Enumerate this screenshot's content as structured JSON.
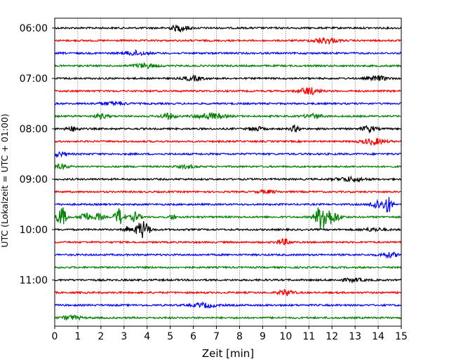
{
  "chart_data": {
    "type": "line",
    "title": "",
    "xlabel": "Zeit  [min]",
    "ylabel": "UTC (Lokalzeit = UTC + 01:00)",
    "xlim": [
      0,
      15
    ],
    "x_ticks": [
      0,
      1,
      2,
      3,
      4,
      5,
      6,
      7,
      8,
      9,
      10,
      11,
      12,
      13,
      14,
      15
    ],
    "y_ticks": [
      {
        "label": "06:00",
        "row": 0
      },
      {
        "label": "07:00",
        "row": 4
      },
      {
        "label": "08:00",
        "row": 8
      },
      {
        "label": "09:00",
        "row": 12
      },
      {
        "label": "10:00",
        "row": 16
      },
      {
        "label": "11:00",
        "row": 20
      }
    ],
    "grid": "vertical dotted",
    "row_interval_minutes": 15,
    "row_colors": [
      "#000000",
      "#ff0000",
      "#0000ff",
      "#008000"
    ],
    "traces": [
      {
        "start": "06:00",
        "bursts": [
          {
            "t": 5.4,
            "amp": 4,
            "w": 0.4
          }
        ]
      },
      {
        "start": "06:15",
        "bursts": [
          {
            "t": 11.7,
            "amp": 4,
            "w": 0.5
          }
        ]
      },
      {
        "start": "06:30",
        "bursts": [
          {
            "t": 3.5,
            "amp": 3,
            "w": 0.5
          }
        ]
      },
      {
        "start": "06:45",
        "bursts": [
          {
            "t": 3.9,
            "amp": 3,
            "w": 0.5
          }
        ]
      },
      {
        "start": "07:00",
        "bursts": [
          {
            "t": 6.0,
            "amp": 3,
            "w": 0.4
          },
          {
            "t": 14.0,
            "amp": 3,
            "w": 0.4
          }
        ]
      },
      {
        "start": "07:15",
        "bursts": [
          {
            "t": 11.0,
            "amp": 5,
            "w": 0.4
          }
        ]
      },
      {
        "start": "07:30",
        "bursts": [
          {
            "t": 2.5,
            "amp": 2,
            "w": 0.6
          }
        ]
      },
      {
        "start": "07:45",
        "bursts": [
          {
            "t": 2.0,
            "amp": 3,
            "w": 0.3
          },
          {
            "t": 4.9,
            "amp": 4,
            "w": 0.3
          },
          {
            "t": 6.7,
            "amp": 4,
            "w": 0.6
          },
          {
            "t": 11.2,
            "amp": 3,
            "w": 0.4
          }
        ]
      },
      {
        "start": "08:00",
        "bursts": [
          {
            "t": 0.8,
            "amp": 3,
            "w": 0.3
          },
          {
            "t": 8.7,
            "amp": 3,
            "w": 0.3
          },
          {
            "t": 10.4,
            "amp": 4,
            "w": 0.2
          },
          {
            "t": 13.6,
            "amp": 4,
            "w": 0.3
          }
        ]
      },
      {
        "start": "08:15",
        "bursts": [
          {
            "t": 13.8,
            "amp": 4,
            "w": 0.5
          }
        ]
      },
      {
        "start": "08:30",
        "bursts": [
          {
            "t": 0.2,
            "amp": 3,
            "w": 0.3
          }
        ]
      },
      {
        "start": "08:45",
        "bursts": [
          {
            "t": 0.3,
            "amp": 3,
            "w": 0.3
          },
          {
            "t": 5.7,
            "amp": 2,
            "w": 0.4
          }
        ]
      },
      {
        "start": "09:00",
        "bursts": [
          {
            "t": 12.8,
            "amp": 3,
            "w": 0.6
          }
        ]
      },
      {
        "start": "09:15",
        "bursts": [
          {
            "t": 9.2,
            "amp": 2,
            "w": 0.4
          }
        ]
      },
      {
        "start": "09:30",
        "bursts": [
          {
            "t": 13.9,
            "amp": 7,
            "w": 0.2
          },
          {
            "t": 14.4,
            "amp": 12,
            "w": 0.2
          }
        ]
      },
      {
        "start": "09:45",
        "bursts": [
          {
            "t": 0.3,
            "amp": 14,
            "w": 0.2
          },
          {
            "t": 1.3,
            "amp": 8,
            "w": 0.2
          },
          {
            "t": 1.9,
            "amp": 5,
            "w": 0.2
          },
          {
            "t": 2.8,
            "amp": 12,
            "w": 0.2
          },
          {
            "t": 3.5,
            "amp": 7,
            "w": 0.2
          },
          {
            "t": 5.1,
            "amp": 5,
            "w": 0.1
          },
          {
            "t": 11.6,
            "amp": 20,
            "w": 0.3
          },
          {
            "t": 12.1,
            "amp": 6,
            "w": 0.3
          }
        ]
      },
      {
        "start": "10:00",
        "bursts": [
          {
            "t": 3.1,
            "amp": 4,
            "w": 0.1
          },
          {
            "t": 3.8,
            "amp": 12,
            "w": 0.3
          },
          {
            "t": 13.8,
            "amp": 2,
            "w": 0.5
          }
        ]
      },
      {
        "start": "10:15",
        "bursts": [
          {
            "t": 9.9,
            "amp": 4,
            "w": 0.3
          }
        ]
      },
      {
        "start": "10:30",
        "bursts": [
          {
            "t": 14.5,
            "amp": 3,
            "w": 0.4
          }
        ]
      },
      {
        "start": "10:45",
        "bursts": []
      },
      {
        "start": "11:00",
        "bursts": [
          {
            "t": 12.9,
            "amp": 2,
            "w": 0.5
          }
        ]
      },
      {
        "start": "11:15",
        "bursts": [
          {
            "t": 10.0,
            "amp": 4,
            "w": 0.3
          }
        ]
      },
      {
        "start": "11:30",
        "bursts": [
          {
            "t": 6.5,
            "amp": 3,
            "w": 0.5
          }
        ]
      },
      {
        "start": "11:45",
        "bursts": [
          {
            "t": 0.7,
            "amp": 3,
            "w": 0.4
          }
        ]
      }
    ]
  }
}
